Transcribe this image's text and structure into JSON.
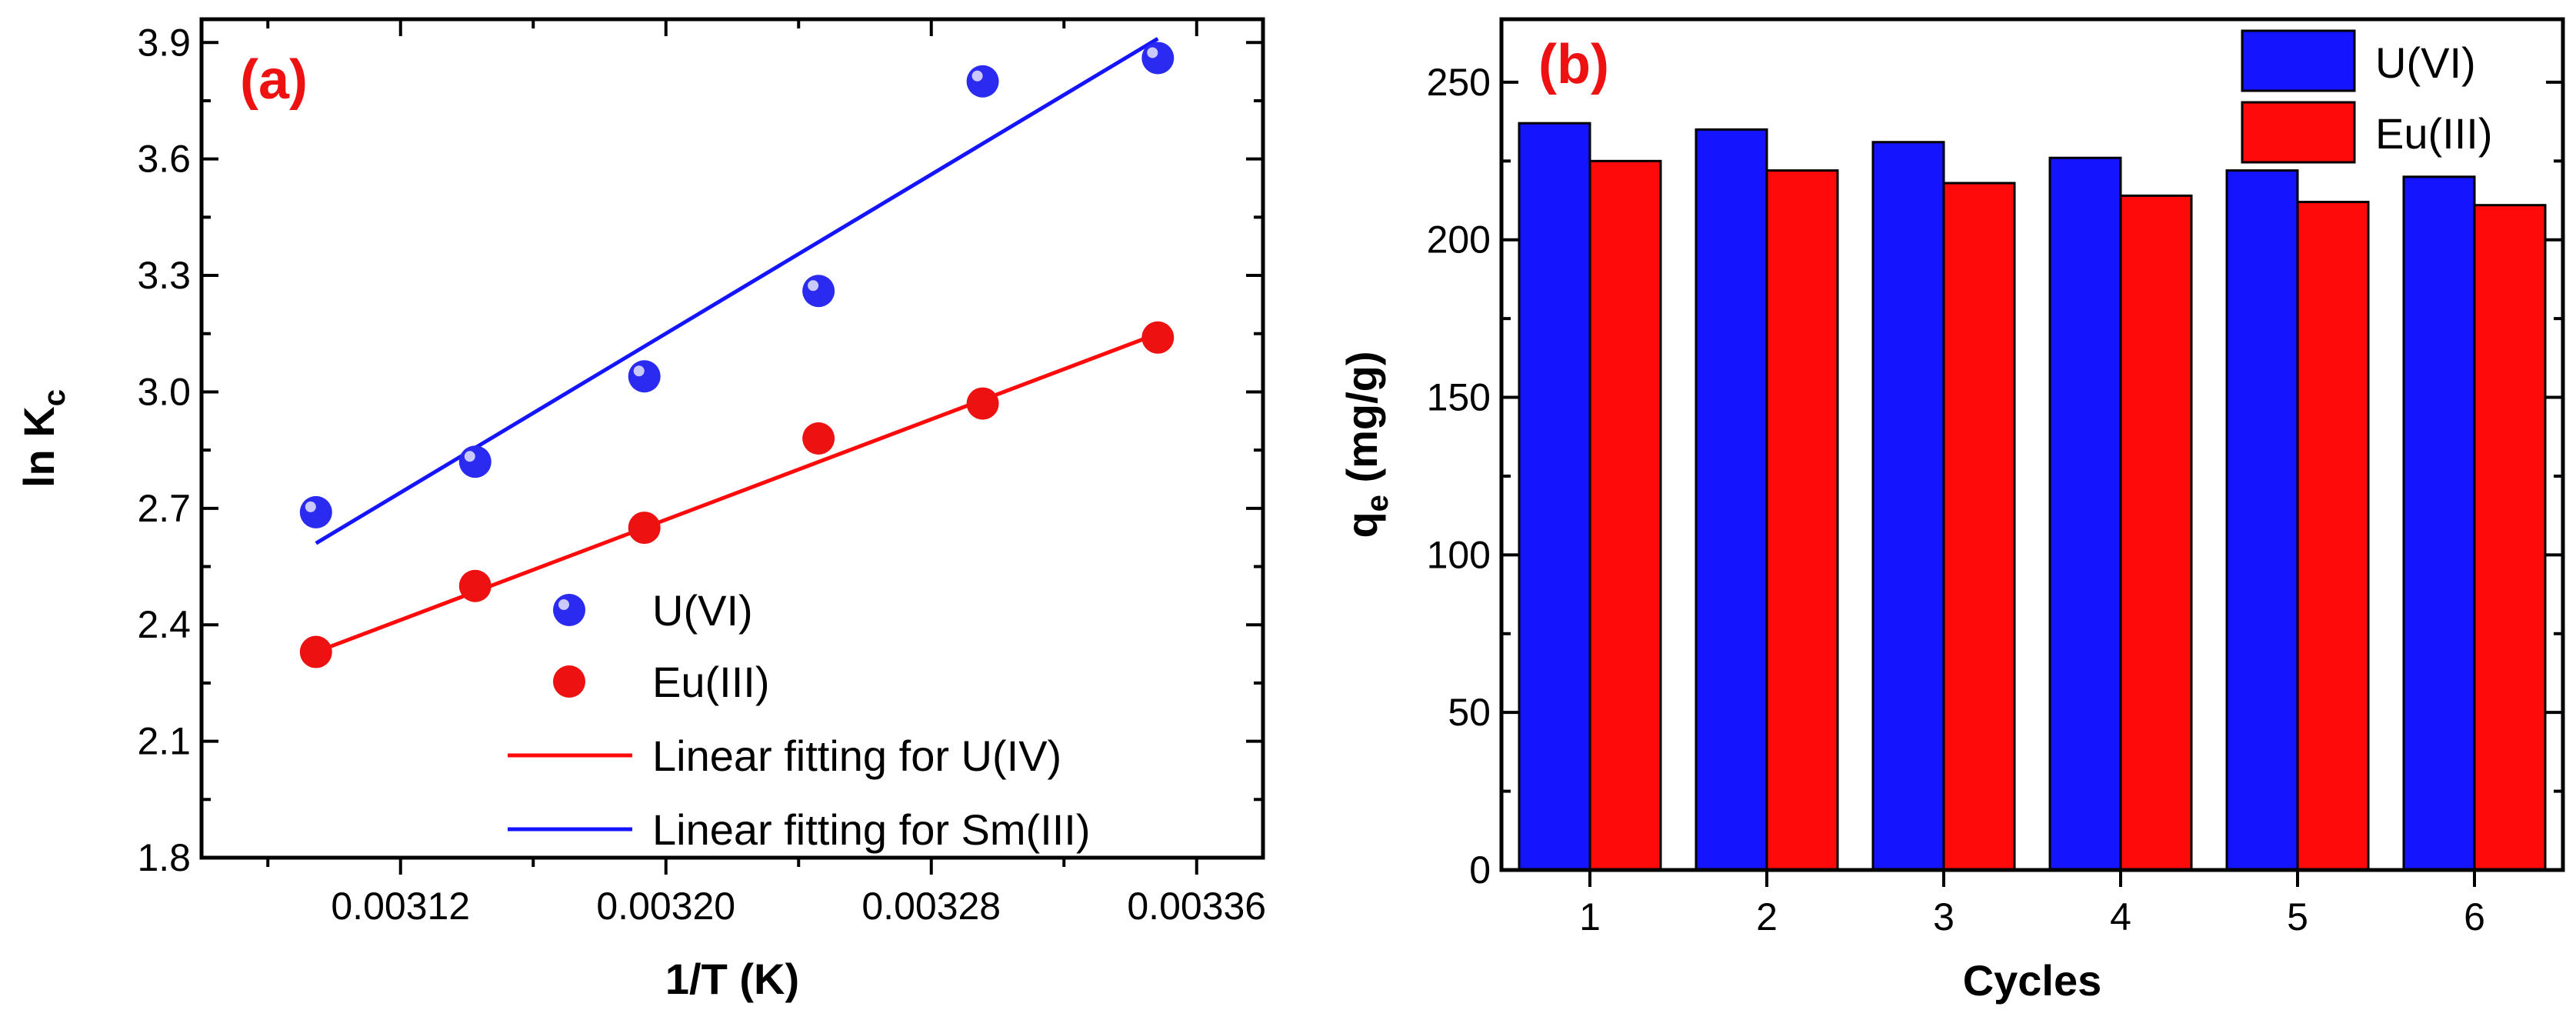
{
  "colors": {
    "blue": "#1414ff",
    "red": "#ff0a0a",
    "blue_marker": "#2a2af0",
    "red_marker": "#ee1111",
    "label_red": "#ee1111"
  },
  "chart_data": [
    {
      "type": "scatter",
      "panel_label": "(a)",
      "xlabel": "1/T (K)",
      "ylabel_main": "ln K",
      "ylabel_sub": "c",
      "xlim": [
        0.00306,
        0.00338
      ],
      "ylim": [
        1.8,
        3.96
      ],
      "xticks": [
        0.00312,
        0.0032,
        0.00328,
        0.00336
      ],
      "xtick_labels": [
        "0.00312",
        "0.00320",
        "0.00328",
        "0.00336"
      ],
      "yticks": [
        1.8,
        2.1,
        2.4,
        2.7,
        3.0,
        3.3,
        3.6,
        3.9
      ],
      "ytick_labels": [
        "1.8",
        "2.1",
        "2.4",
        "2.7",
        "3.0",
        "3.3",
        "3.6",
        "3.9"
      ],
      "series": [
        {
          "name": "U(VI)",
          "kind": "points",
          "color_key": "blue_marker",
          "x": [
            0.0030945,
            0.0031425,
            0.0031935,
            0.003246,
            0.0032955,
            0.0033483
          ],
          "y": [
            2.69,
            2.82,
            3.04,
            3.26,
            3.8,
            3.86
          ]
        },
        {
          "name": "Eu(III)",
          "kind": "points",
          "color_key": "red_marker",
          "x": [
            0.0030945,
            0.0031425,
            0.0031935,
            0.003246,
            0.0032955,
            0.0033483
          ],
          "y": [
            2.33,
            2.5,
            2.65,
            2.88,
            2.97,
            3.14
          ]
        },
        {
          "name": "Linear fitting for U(IV)",
          "kind": "line",
          "color_key": "red",
          "x": [
            0.0030945,
            0.0033483
          ],
          "y": [
            2.33,
            3.15
          ]
        },
        {
          "name": "Linear fitting for Sm(III)",
          "kind": "line",
          "color_key": "blue",
          "x": [
            0.0030945,
            0.0033483
          ],
          "y": [
            2.61,
            3.91
          ]
        }
      ],
      "legend_position": "bottom-right"
    },
    {
      "type": "bar",
      "panel_label": "(b)",
      "xlabel": "Cycles",
      "ylabel_main": "q",
      "ylabel_sub": "e",
      "ylabel_unit": " (mg/g)",
      "categories": [
        "1",
        "2",
        "3",
        "4",
        "5",
        "6"
      ],
      "ylim": [
        0,
        270
      ],
      "yticks": [
        0,
        50,
        100,
        150,
        200,
        250
      ],
      "ytick_labels": [
        "0",
        "50",
        "100",
        "150",
        "200",
        "250"
      ],
      "series": [
        {
          "name": "U(VI)",
          "color_key": "blue",
          "values": [
            237,
            235,
            231,
            226,
            222,
            220
          ]
        },
        {
          "name": "Eu(III)",
          "color_key": "red",
          "values": [
            225,
            222,
            218,
            214,
            212,
            211
          ]
        }
      ],
      "legend_position": "top-right"
    }
  ]
}
